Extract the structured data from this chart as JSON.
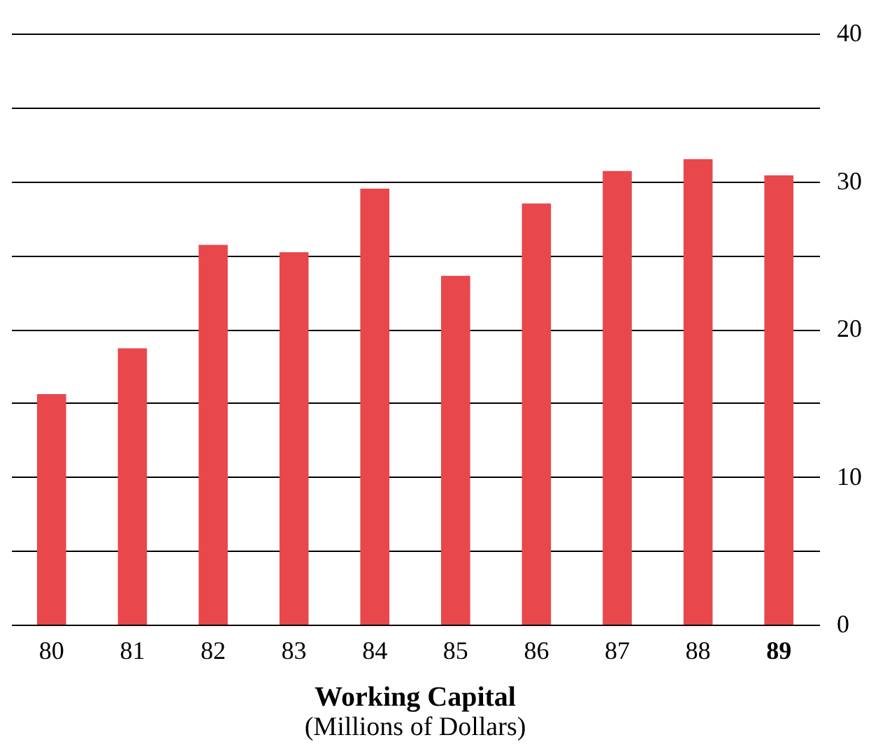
{
  "chart_data": {
    "type": "bar",
    "title": "Working Capital",
    "subtitle": "(Millions of Dollars)",
    "categories": [
      "80",
      "81",
      "82",
      "83",
      "84",
      "85",
      "86",
      "87",
      "88",
      "89"
    ],
    "values": [
      15.6,
      18.7,
      25.7,
      25.2,
      29.5,
      23.6,
      28.5,
      30.7,
      31.5,
      30.4
    ],
    "color": "#e8474c",
    "ylim": [
      0,
      40
    ],
    "yticks": [
      0,
      {
        "value": 5,
        "label": null
      },
      10,
      {
        "value": 15,
        "label": null
      },
      20,
      {
        "value": 25,
        "label": null
      },
      30,
      {
        "value": 35,
        "label": null
      },
      40
    ],
    "grid": "y"
  }
}
